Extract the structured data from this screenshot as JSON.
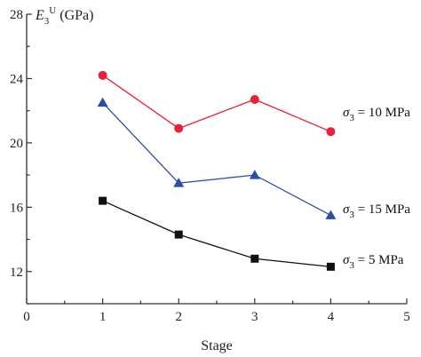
{
  "chart_data": {
    "type": "line",
    "title": "",
    "xlabel": "Stage",
    "ylabel": "E3U (GPa)",
    "ylabel_parts": {
      "main": "E",
      "sub": "3",
      "sup": "U",
      "unit": " (GPa)"
    },
    "xlim": [
      0,
      5
    ],
    "ylim": [
      10,
      28
    ],
    "xticks": [
      "0",
      "1",
      "2",
      "3",
      "4",
      "5"
    ],
    "yticks": [
      "12",
      "16",
      "20",
      "24",
      "28"
    ],
    "grid": false,
    "legend": "inline labels at right end of each series",
    "x": [
      1,
      2,
      3,
      4
    ],
    "series": [
      {
        "name": "σ3 = 10 MPa",
        "label_parts": {
          "sym": "σ",
          "sub": "3",
          "rest": " = 10 MPa"
        },
        "color": "#e8203a",
        "marker": "circle",
        "values": [
          24.2,
          20.9,
          22.7,
          20.7
        ]
      },
      {
        "name": "σ3 = 15 MPa",
        "label_parts": {
          "sym": "σ",
          "sub": "3",
          "rest": " = 15 MPa"
        },
        "color": "#2b4fa6",
        "marker": "triangle",
        "values": [
          22.5,
          17.5,
          18.0,
          15.5
        ]
      },
      {
        "name": "σ3 = 5 MPa",
        "label_parts": {
          "sym": "σ",
          "sub": "3",
          "rest": " = 5 MPa"
        },
        "color": "#111111",
        "marker": "square",
        "values": [
          16.4,
          14.3,
          12.8,
          12.3
        ]
      }
    ]
  }
}
